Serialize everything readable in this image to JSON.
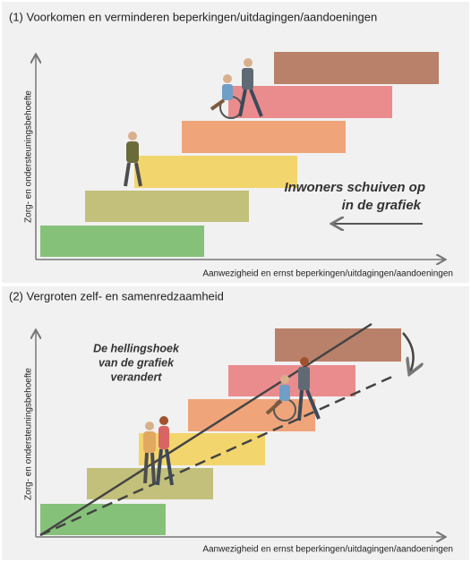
{
  "panels": [
    {
      "title": "(1) Voorkomen en verminderen beperkingen/uitdagingen/aandoeningen",
      "y_axis_label": "Zorg- en ondersteuningsbehoefte",
      "x_axis_label": "Aanwezigheid en ernst beperkingen/uitdagingen/aandoeningen",
      "annotation": [
        "Inwoners schuiven op",
        "in de grafiek"
      ]
    },
    {
      "title": "(2) Vergroten zelf- en samenredzaamheid",
      "y_axis_label": "Zorg- en ondersteuningsbehoefte",
      "x_axis_label": "Aanwezigheid en ernst beperkingen/uitdagingen/aandoeningen",
      "annotation": [
        "De hellingshoek",
        "van de grafiek",
        "verandert"
      ]
    }
  ]
}
